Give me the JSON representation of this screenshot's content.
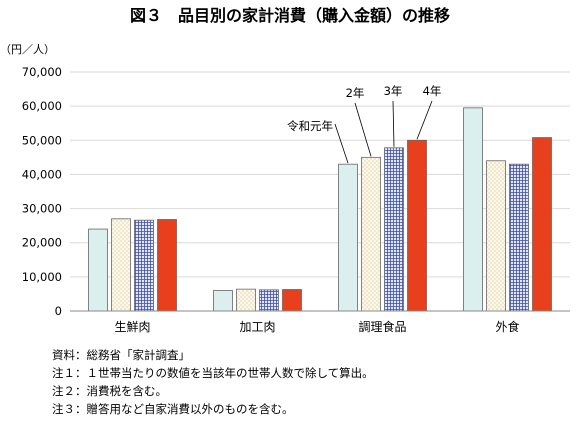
{
  "chart_data": {
    "type": "bar",
    "title": "図３　品目別の家計消費（購入金額）の推移",
    "ylabel": "（円／人）",
    "ylim": [
      0,
      70000
    ],
    "yticks": [
      0,
      10000,
      20000,
      30000,
      40000,
      50000,
      60000,
      70000
    ],
    "ytick_labels": [
      "0",
      "10,000",
      "20,000",
      "30,000",
      "40,000",
      "50,000",
      "60,000",
      "70,000"
    ],
    "grid": true,
    "categories": [
      "生鮮肉",
      "加工肉",
      "調理食品",
      "外食"
    ],
    "series": [
      {
        "name": "令和元年",
        "values": [
          24000,
          6000,
          43000,
          59500
        ],
        "color": "#dcefef",
        "pattern": "plain"
      },
      {
        "name": "2年",
        "values": [
          27000,
          6400,
          45000,
          44000
        ],
        "color": "#fdf7e6",
        "pattern": "dots"
      },
      {
        "name": "3年",
        "values": [
          26600,
          6200,
          47800,
          43000
        ],
        "color": "#ffffff",
        "pattern": "grid"
      },
      {
        "name": "4年",
        "values": [
          26800,
          6300,
          50000,
          50800
        ],
        "color": "#e8401c",
        "pattern": "plain"
      }
    ]
  },
  "notes": [
    "資料：総務省「家計調査」",
    "注１：１世帯当たりの数値を当該年の世帯人数で除して算出。",
    "注２：消費税を含む。",
    "注３：贈答用など自家消費以外のものを含む。"
  ]
}
